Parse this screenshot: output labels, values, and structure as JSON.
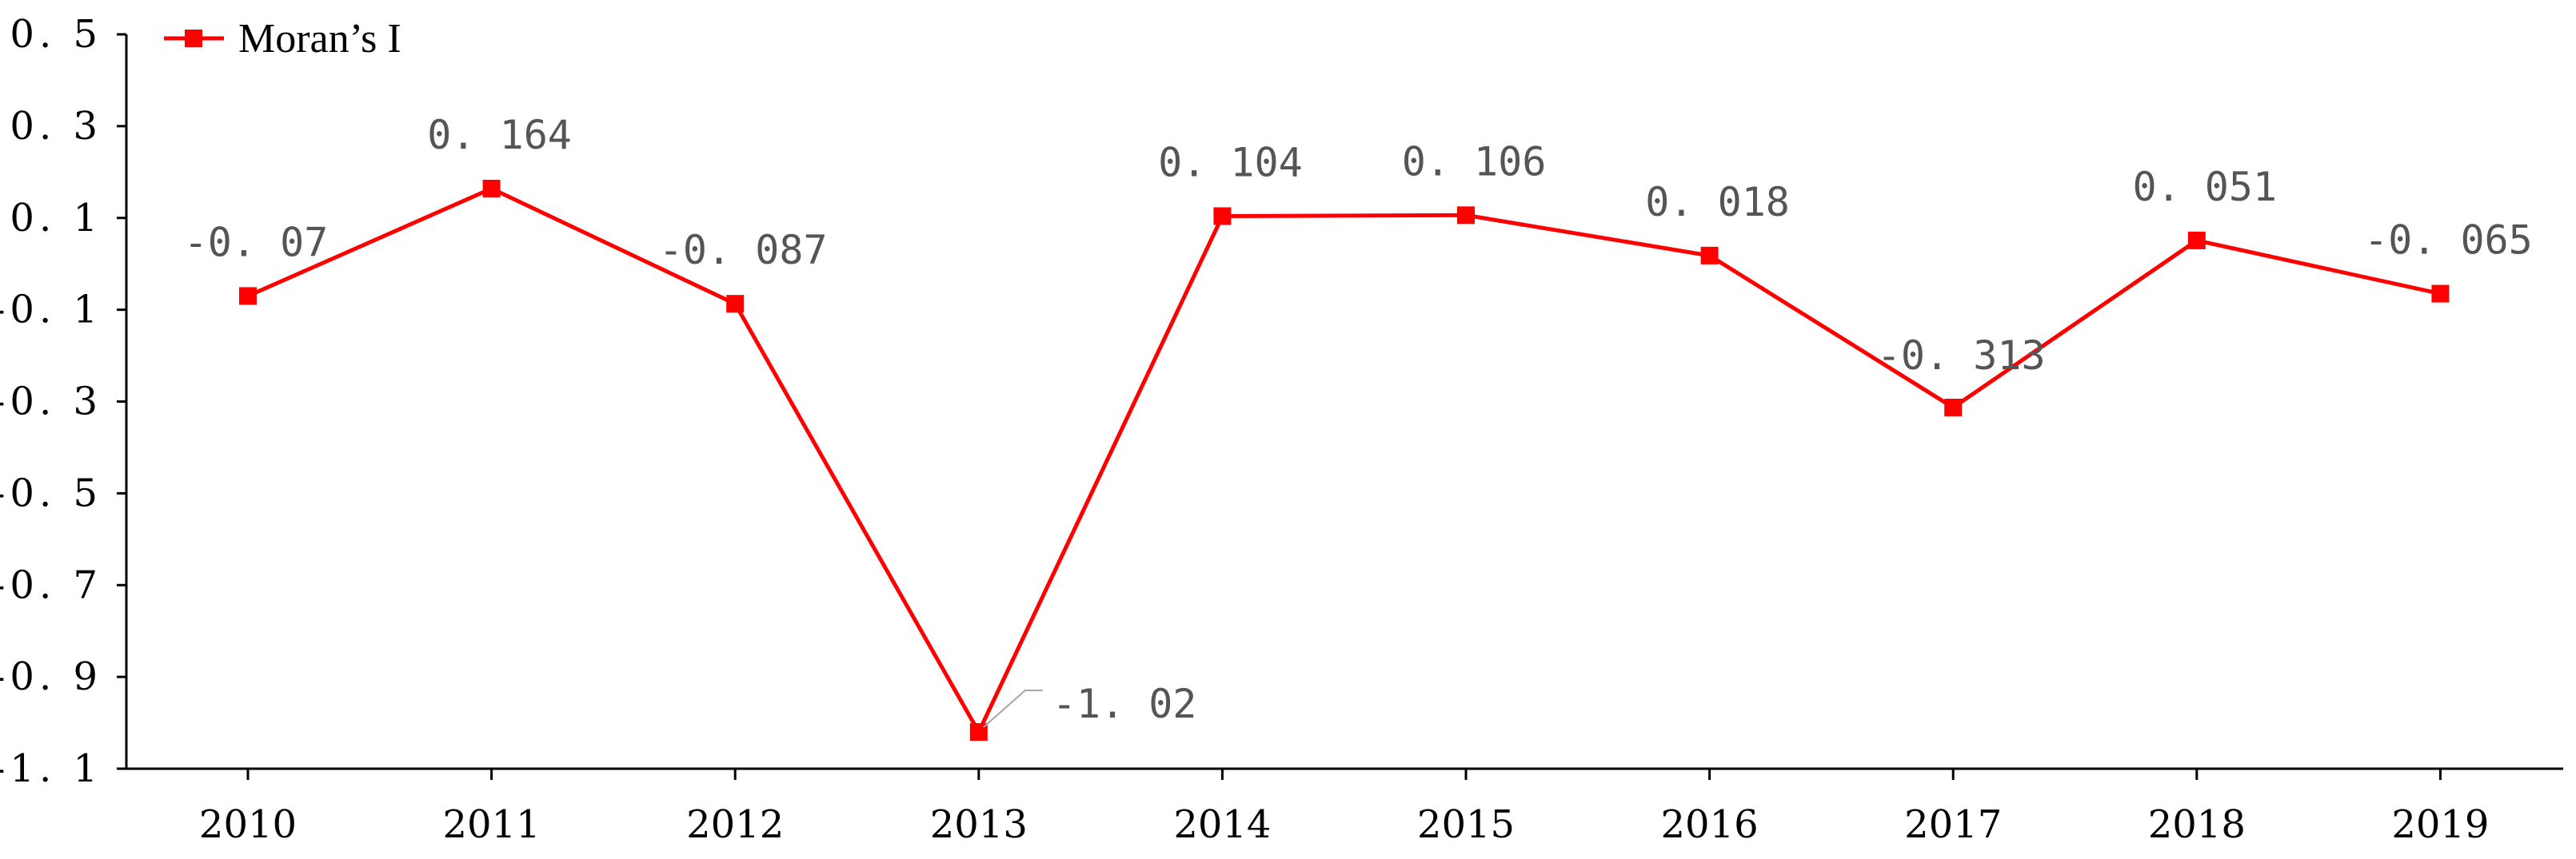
{
  "chart_data": {
    "type": "line",
    "categories": [
      "2010",
      "2011",
      "2012",
      "2013",
      "2014",
      "2015",
      "2016",
      "2017",
      "2018",
      "2019"
    ],
    "series": [
      {
        "name": "Moran’s I",
        "color": "#ff0000",
        "marker": "square",
        "values": [
          -0.07,
          0.164,
          -0.087,
          -1.02,
          0.104,
          0.106,
          0.018,
          -0.313,
          0.051,
          -0.065
        ],
        "data_labels": [
          "-0. 07",
          "0. 164",
          "-0. 087",
          "-1. 02",
          "0. 104",
          "0. 106",
          "0. 018",
          "-0. 313",
          "0. 051",
          "-0. 065"
        ]
      }
    ],
    "ylim": [
      -1.1,
      0.5
    ],
    "yticks": [
      0.5,
      0.3,
      0.1,
      -0.1,
      -0.3,
      -0.5,
      -0.7,
      -0.9,
      -1.1
    ],
    "ytick_labels": [
      "0. 5",
      "0. 3",
      "0. 1",
      "-0. 1",
      "-0. 3",
      "-0. 5",
      "-0. 7",
      "-0. 9",
      "-1. 1"
    ],
    "grid": false,
    "legend_position": "top-left",
    "title": "",
    "xlabel": "",
    "ylabel": ""
  }
}
